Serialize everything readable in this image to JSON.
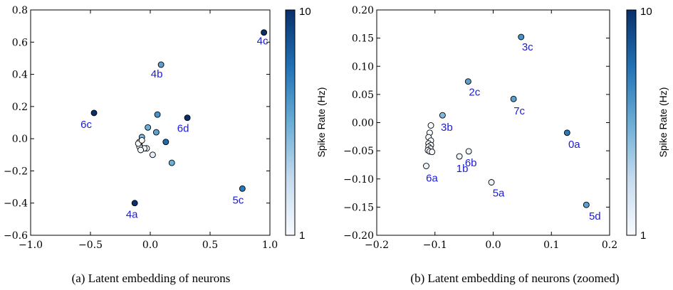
{
  "chart_data": [
    {
      "type": "scatter",
      "caption": "(a) Latent embedding of neurons",
      "xlim": [
        -1.0,
        1.0
      ],
      "ylim": [
        -0.6,
        0.8
      ],
      "xticks": [
        -1.0,
        -0.5,
        0.0,
        0.5,
        1.0
      ],
      "xtick_labels": [
        "−1.0",
        "−0.5",
        "0.0",
        "0.5",
        "1.0"
      ],
      "yticks": [
        -0.6,
        -0.4,
        -0.2,
        0.0,
        0.2,
        0.4,
        0.6,
        0.8
      ],
      "ytick_labels": [
        "−0.6",
        "−0.4",
        "−0.2",
        "0.0",
        "0.2",
        "0.4",
        "0.6",
        "0.8"
      ],
      "colorbar": {
        "label": "Spike Rate (Hz)",
        "min_label": "1",
        "max_label": "10",
        "min": 1,
        "max": 10,
        "color_low": "#f7fbff",
        "color_high": "#08306b"
      },
      "points": [
        {
          "x": 0.95,
          "y": 0.66,
          "rate": 10,
          "label": "4c"
        },
        {
          "x": 0.09,
          "y": 0.46,
          "rate": 6,
          "label": "4b"
        },
        {
          "x": -0.47,
          "y": 0.16,
          "rate": 10,
          "label": "6c"
        },
        {
          "x": 0.31,
          "y": 0.13,
          "rate": 10,
          "label": "6d"
        },
        {
          "x": 0.77,
          "y": -0.31,
          "rate": 7.5,
          "label": "5c"
        },
        {
          "x": -0.13,
          "y": -0.4,
          "rate": 10,
          "label": "4a"
        },
        {
          "x": 0.06,
          "y": 0.15,
          "rate": 6.5,
          "label": ""
        },
        {
          "x": -0.02,
          "y": 0.07,
          "rate": 5.5,
          "label": ""
        },
        {
          "x": 0.05,
          "y": 0.04,
          "rate": 6,
          "label": ""
        },
        {
          "x": 0.13,
          "y": -0.02,
          "rate": 8,
          "label": ""
        },
        {
          "x": 0.18,
          "y": -0.15,
          "rate": 5.5,
          "label": ""
        },
        {
          "x": -0.07,
          "y": 0.01,
          "rate": 5,
          "label": ""
        },
        {
          "x": 0.02,
          "y": -0.1,
          "rate": 2,
          "label": ""
        },
        {
          "x": -0.03,
          "y": -0.06,
          "rate": 1.5,
          "label": ""
        },
        {
          "x": -0.05,
          "y": -0.06,
          "rate": 1.5,
          "label": ""
        },
        {
          "x": -0.09,
          "y": -0.02,
          "rate": 1,
          "label": ""
        },
        {
          "x": -0.09,
          "y": -0.04,
          "rate": 1,
          "label": ""
        },
        {
          "x": -0.09,
          "y": -0.05,
          "rate": 1,
          "label": ""
        },
        {
          "x": -0.08,
          "y": -0.07,
          "rate": 1,
          "label": ""
        },
        {
          "x": -0.1,
          "y": -0.03,
          "rate": 1,
          "label": ""
        },
        {
          "x": -0.07,
          "y": -0.01,
          "rate": 1,
          "label": ""
        }
      ]
    },
    {
      "type": "scatter",
      "caption": "(b) Latent embedding of neurons (zoomed)",
      "xlim": [
        -0.2,
        0.2
      ],
      "ylim": [
        -0.2,
        0.2
      ],
      "xticks": [
        -0.2,
        -0.1,
        0.0,
        0.1,
        0.2
      ],
      "xtick_labels": [
        "−0.2",
        "−0.1",
        "0.0",
        "0.1",
        "0.2"
      ],
      "yticks": [
        -0.2,
        -0.15,
        -0.1,
        -0.05,
        0.0,
        0.05,
        0.1,
        0.15,
        0.2
      ],
      "ytick_labels": [
        "−0.20",
        "−0.15",
        "−0.10",
        "−0.05",
        "0.00",
        "0.05",
        "0.10",
        "0.15",
        "0.20"
      ],
      "colorbar": {
        "label": "Spike Rate (Hz)",
        "min_label": "1",
        "max_label": "10",
        "min": 1,
        "max": 10,
        "color_low": "#f7fbff",
        "color_high": "#08306b"
      },
      "points": [
        {
          "x": 0.048,
          "y": 0.152,
          "rate": 6.5,
          "label": "3c"
        },
        {
          "x": -0.043,
          "y": 0.073,
          "rate": 6,
          "label": "2c"
        },
        {
          "x": 0.035,
          "y": 0.042,
          "rate": 6,
          "label": "7c"
        },
        {
          "x": -0.087,
          "y": 0.013,
          "rate": 5,
          "label": "3b"
        },
        {
          "x": 0.127,
          "y": -0.018,
          "rate": 7.5,
          "label": "0a"
        },
        {
          "x": -0.058,
          "y": -0.06,
          "rate": 1.5,
          "label": "1b"
        },
        {
          "x": -0.042,
          "y": -0.051,
          "rate": 1.5,
          "label": "6b"
        },
        {
          "x": -0.115,
          "y": -0.077,
          "rate": 1.5,
          "label": "6a"
        },
        {
          "x": -0.003,
          "y": -0.106,
          "rate": 1.5,
          "label": "5a"
        },
        {
          "x": 0.16,
          "y": -0.146,
          "rate": 6,
          "label": "5d"
        },
        {
          "x": -0.107,
          "y": -0.005,
          "rate": 1,
          "label": ""
        },
        {
          "x": -0.109,
          "y": -0.018,
          "rate": 1,
          "label": ""
        },
        {
          "x": -0.111,
          "y": -0.026,
          "rate": 1,
          "label": ""
        },
        {
          "x": -0.107,
          "y": -0.032,
          "rate": 1,
          "label": ""
        },
        {
          "x": -0.111,
          "y": -0.037,
          "rate": 1,
          "label": ""
        },
        {
          "x": -0.107,
          "y": -0.04,
          "rate": 1,
          "label": ""
        },
        {
          "x": -0.111,
          "y": -0.043,
          "rate": 1,
          "label": ""
        },
        {
          "x": -0.108,
          "y": -0.046,
          "rate": 1,
          "label": ""
        },
        {
          "x": -0.112,
          "y": -0.049,
          "rate": 1,
          "label": ""
        },
        {
          "x": -0.109,
          "y": -0.051,
          "rate": 1,
          "label": ""
        },
        {
          "x": -0.105,
          "y": -0.052,
          "rate": 1,
          "label": ""
        }
      ]
    }
  ]
}
